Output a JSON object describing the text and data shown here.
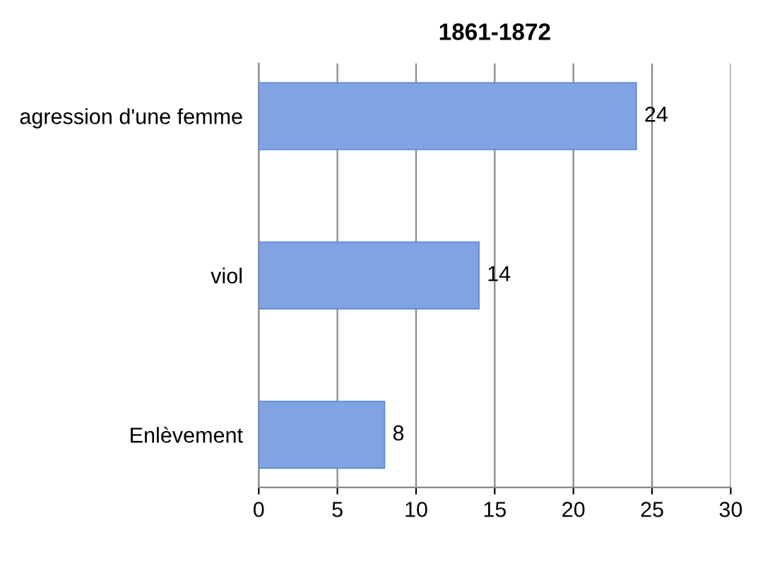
{
  "chart_data": {
    "type": "bar",
    "orientation": "horizontal",
    "title": "1861-1872",
    "categories": [
      "agression d'une femme",
      "viol",
      "Enlèvement"
    ],
    "values": [
      24,
      14,
      8
    ],
    "color": "#7fa3e3",
    "xlim": [
      0,
      30
    ],
    "xticks": [
      0,
      5,
      10,
      15,
      20,
      25,
      30
    ],
    "grid": "x",
    "data_labels": true
  }
}
